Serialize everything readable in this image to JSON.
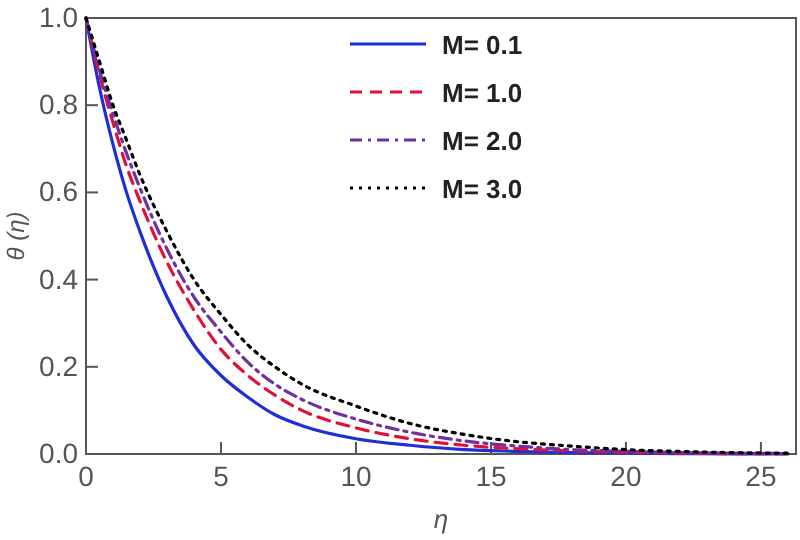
{
  "chart_data": {
    "type": "line",
    "xlabel": "η",
    "ylabel": "θ (η)",
    "x": [
      0,
      0.5,
      1,
      1.5,
      2,
      3,
      4,
      5,
      6,
      7,
      8,
      10,
      12,
      14,
      16,
      18,
      20,
      22,
      24,
      26
    ],
    "series": [
      {
        "name": "M= 0.1",
        "color": "#1f2fd6",
        "line_style": "solid",
        "values": [
          1,
          0.84,
          0.71,
          0.6,
          0.51,
          0.36,
          0.25,
          0.18,
          0.13,
          0.09,
          0.065,
          0.035,
          0.02,
          0.01,
          0.006,
          0.003,
          0.002,
          0.001,
          0,
          0
        ]
      },
      {
        "name": "M= 1.0",
        "color": "#e0103a",
        "line_style": "dashed",
        "values": [
          1,
          0.87,
          0.76,
          0.66,
          0.58,
          0.44,
          0.33,
          0.24,
          0.18,
          0.135,
          0.1,
          0.06,
          0.035,
          0.02,
          0.012,
          0.007,
          0.004,
          0.002,
          0.001,
          0.001
        ]
      },
      {
        "name": "M= 2.0",
        "color": "#7030a0",
        "line_style": "dashdot",
        "values": [
          1,
          0.88,
          0.78,
          0.69,
          0.61,
          0.47,
          0.36,
          0.28,
          0.21,
          0.16,
          0.125,
          0.08,
          0.05,
          0.03,
          0.018,
          0.01,
          0.006,
          0.003,
          0.002,
          0.001
        ]
      },
      {
        "name": "M= 3.0",
        "color": "#000000",
        "line_style": "dotted",
        "values": [
          1,
          0.9,
          0.8,
          0.72,
          0.64,
          0.51,
          0.4,
          0.32,
          0.25,
          0.2,
          0.16,
          0.11,
          0.07,
          0.045,
          0.028,
          0.018,
          0.01,
          0.006,
          0.003,
          0.002
        ]
      }
    ],
    "xlim": [
      0,
      26.3
    ],
    "xticks": [
      0,
      5,
      10,
      15,
      20,
      25
    ],
    "ylim": [
      0,
      1
    ],
    "yticks": [
      {
        "value": 0,
        "label": "0.0"
      },
      {
        "value": 0.2,
        "label": "0.2"
      },
      {
        "value": 0.4,
        "label": "0.4"
      },
      {
        "value": 0.6,
        "label": "0.6"
      },
      {
        "value": 0.8,
        "label": "0.8"
      },
      {
        "value": 1,
        "label": "1.0"
      }
    ],
    "legend": "top",
    "grid": false
  }
}
